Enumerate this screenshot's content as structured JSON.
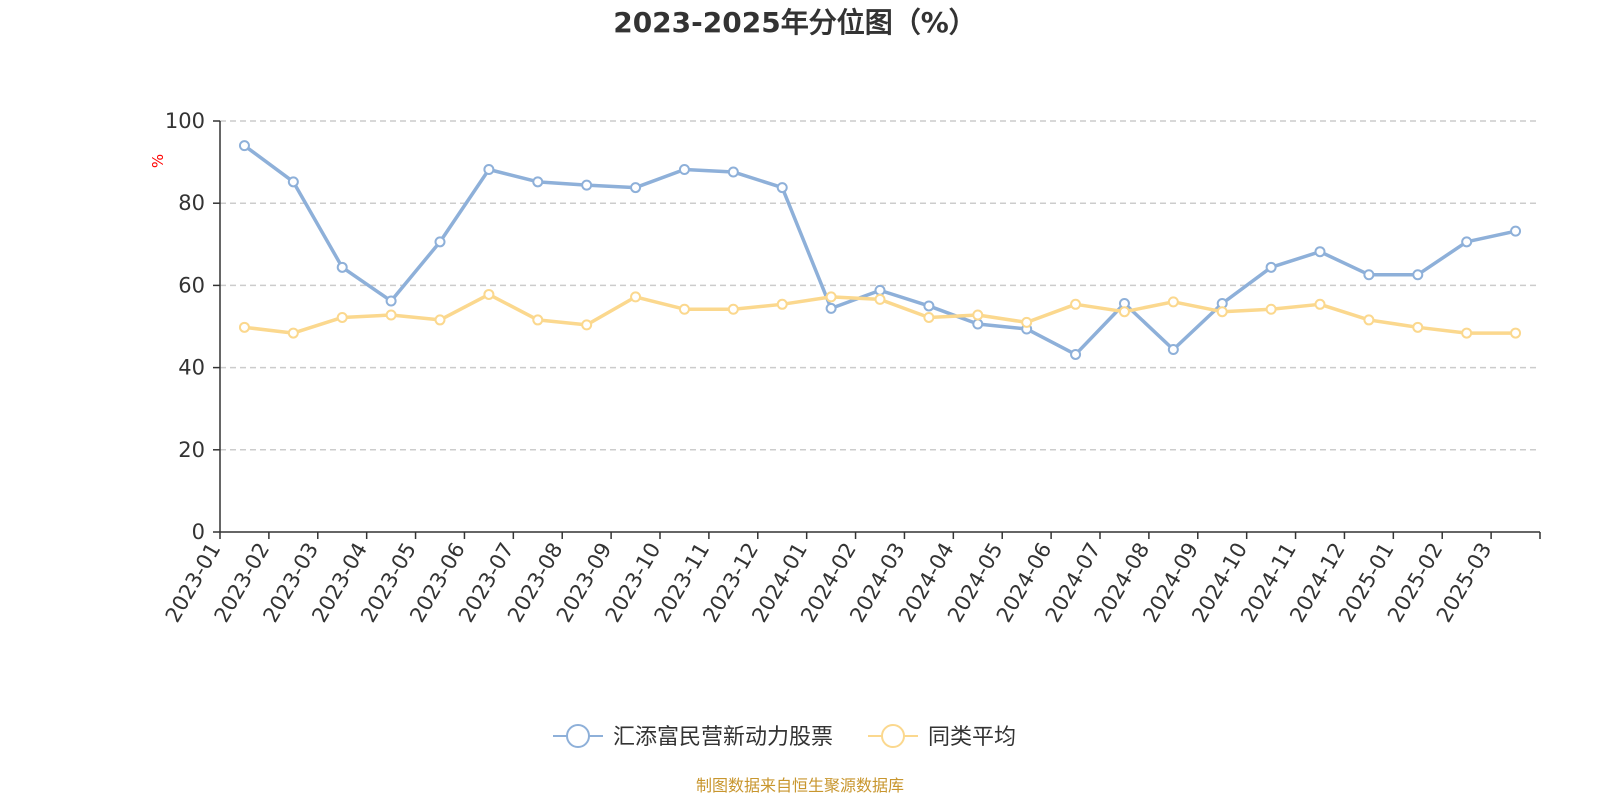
{
  "chart_data": {
    "type": "line",
    "title": "2023-2025年分位图（%）",
    "ylabel": "%",
    "xlabel": "",
    "ylim": [
      0,
      100
    ],
    "yticks": [
      0,
      20,
      40,
      60,
      80,
      100
    ],
    "grid": true,
    "legend_position": "bottom",
    "categories": [
      "2023-01",
      "2023-02",
      "2023-03",
      "2023-04",
      "2023-05",
      "2023-06",
      "2023-07",
      "2023-08",
      "2023-09",
      "2023-10",
      "2023-11",
      "2023-12",
      "2024-01",
      "2024-02",
      "2024-03",
      "2024-04",
      "2024-05",
      "2024-06",
      "2024-07",
      "2024-08",
      "2024-09",
      "2024-10",
      "2024-11",
      "2024-12",
      "2025-01",
      "2025-02",
      "2025-03"
    ],
    "series": [
      {
        "name": "汇添富民营新动力股票",
        "color": "#8eb0d9",
        "values": [
          94,
          85.2,
          64.4,
          56.2,
          70.6,
          88.2,
          85.2,
          84.4,
          83.8,
          88.2,
          87.6,
          83.8,
          54.4,
          58.8,
          55,
          50.6,
          49.4,
          43.2,
          55.6,
          44.4,
          55.6,
          64.4,
          68.2,
          62.6,
          62.6,
          70.6,
          73.2
        ]
      },
      {
        "name": "同类平均",
        "color": "#fbd88e",
        "values": [
          49.8,
          48.4,
          52.2,
          52.8,
          51.6,
          57.8,
          51.6,
          50.4,
          57.2,
          54.2,
          54.2,
          55.4,
          57.2,
          56.6,
          52.2,
          52.8,
          51,
          55.4,
          53.6,
          56,
          53.6,
          54.2,
          55.4,
          51.6,
          49.8,
          48.4,
          48.4
        ]
      }
    ]
  },
  "source_text": "制图数据来自恒生聚源数据库"
}
